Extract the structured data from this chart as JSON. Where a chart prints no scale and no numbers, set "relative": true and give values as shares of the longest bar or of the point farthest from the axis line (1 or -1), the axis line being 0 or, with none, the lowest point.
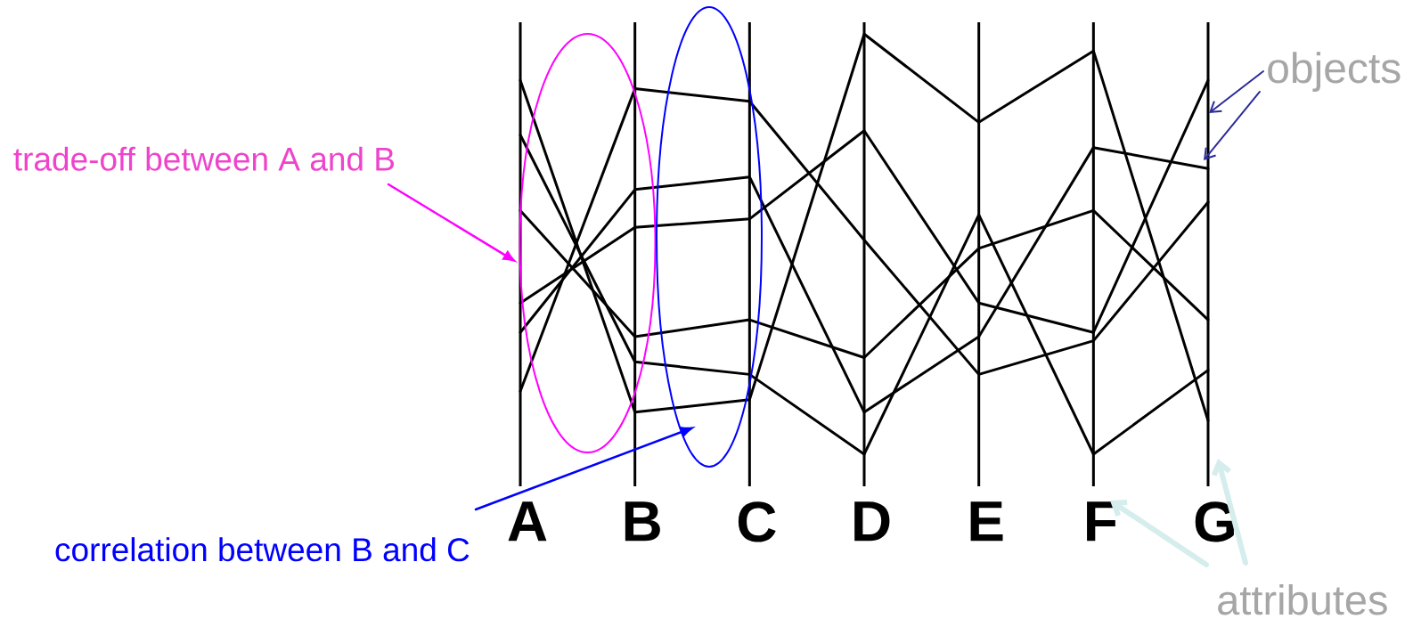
{
  "chart_data": {
    "type": "line",
    "relative": true,
    "grid": "x",
    "categories": [
      "A",
      "B",
      "C",
      "D",
      "E",
      "F",
      "G"
    ],
    "series": [
      {
        "color": "#000000",
        "values": [
          0.89,
          0.1,
          0.13,
          1.0,
          0.79,
          0.96,
          0.08
        ]
      },
      {
        "color": "#000000",
        "values": [
          0.76,
          0.22,
          0.19,
          0.0,
          0.57,
          0.0,
          0.2
        ]
      },
      {
        "color": "#000000",
        "values": [
          0.58,
          0.28,
          0.32,
          0.23,
          0.49,
          0.58,
          0.32
        ]
      },
      {
        "color": "#000000",
        "values": [
          0.36,
          0.54,
          0.56,
          0.77,
          0.36,
          0.29,
          0.89
        ]
      },
      {
        "color": "#000000",
        "values": [
          0.29,
          0.63,
          0.66,
          0.1,
          0.28,
          0.73,
          0.68
        ]
      },
      {
        "color": "#000000",
        "values": [
          0.15,
          0.87,
          0.84,
          0.51,
          0.19,
          0.27,
          0.6
        ]
      }
    ],
    "annotations": [
      "trade-off between A and B",
      "correlation between B and C",
      "objects",
      "attributes"
    ]
  }
}
